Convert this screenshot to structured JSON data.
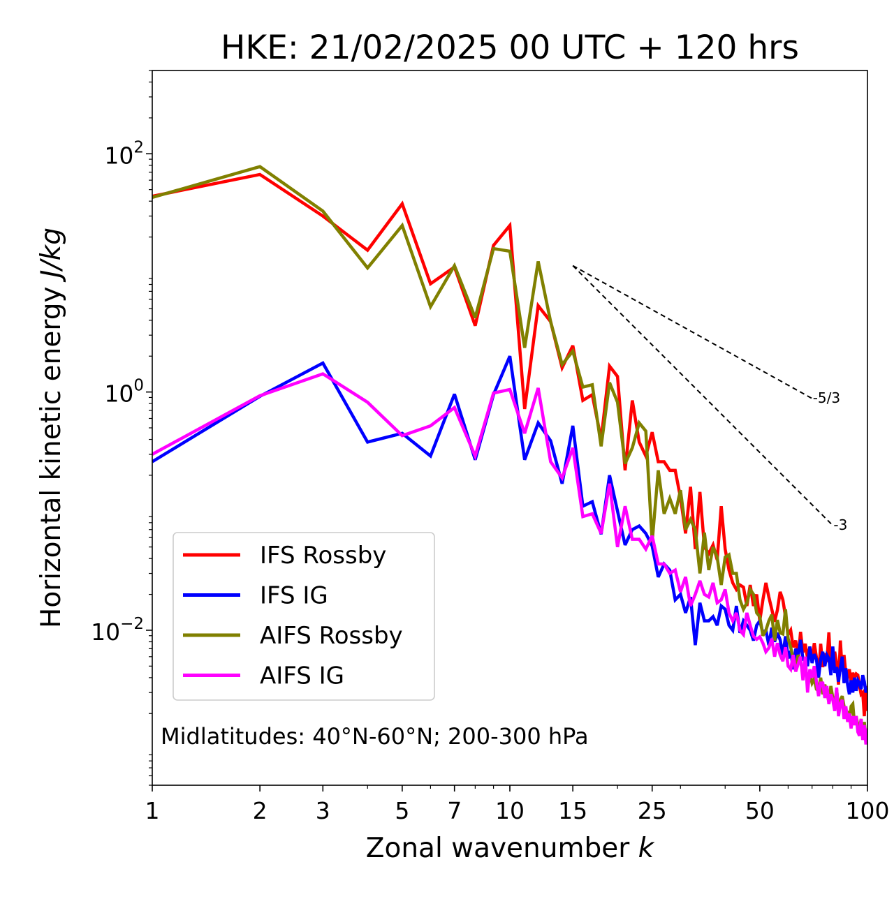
{
  "chart_data": {
    "type": "line",
    "title": "HKE: 21/02/2025 00 UTC + 120 hrs",
    "xlabel": "Zonal wavenumber k",
    "ylabel": "Horizontal kinetic energy J/kg",
    "xscale": "log",
    "yscale": "log",
    "xlim": [
      1,
      100
    ],
    "ylim": [
      0.0005,
      500
    ],
    "x_ticks": [
      1,
      2,
      3,
      5,
      7,
      10,
      15,
      25,
      50,
      100
    ],
    "x_tick_labels": [
      "1",
      "2",
      "3",
      "5",
      "7",
      "10",
      "15",
      "25",
      "50",
      "100"
    ],
    "y_ticks": [
      0.01,
      1,
      100
    ],
    "y_tick_labels": [
      "10−2",
      "10⁰",
      "10²"
    ],
    "y_tick_display": [
      {
        "base": "10",
        "exp": "−2"
      },
      {
        "base": "10",
        "exp": "0"
      },
      {
        "base": "10",
        "exp": "2"
      }
    ],
    "legend_position": "lower-left",
    "annotation": "Midlatitudes: 40°N-60°N; 200-300 hPa",
    "reference_slopes": [
      {
        "label": "-5/3",
        "slope": -1.6667,
        "x": [
          15,
          70
        ],
        "y_start": 11.5
      },
      {
        "label": "-3",
        "slope": -3,
        "x": [
          15,
          80
        ],
        "y_start": 11.5
      }
    ],
    "x": [
      1,
      2,
      3,
      4,
      5,
      6,
      7,
      8,
      9,
      10,
      11,
      12,
      13,
      14,
      15,
      16,
      17,
      18,
      19,
      20,
      21,
      22,
      23,
      24,
      25,
      26,
      27,
      28,
      29,
      30,
      31,
      32,
      33,
      34,
      35,
      36,
      37,
      38,
      39,
      40,
      41,
      42,
      43,
      44,
      45,
      46,
      47,
      48,
      49,
      50,
      51,
      52,
      53,
      54,
      55,
      56,
      57,
      58,
      59,
      60,
      61,
      62,
      63,
      64,
      65,
      66,
      67,
      68,
      69,
      70,
      71,
      72,
      73,
      74,
      75,
      76,
      77,
      78,
      79,
      80,
      81,
      82,
      83,
      84,
      85,
      86,
      87,
      88,
      89,
      90,
      91,
      92,
      93,
      94,
      95,
      96,
      97,
      98,
      99,
      100
    ],
    "series": [
      {
        "name": "IFS Rossby",
        "color": "#ff0000",
        "values": [
          44,
          67,
          30,
          15.5,
          38,
          8.1,
          11.2,
          3.6,
          17,
          25,
          0.72,
          5.3,
          3.9,
          1.6,
          2.45,
          0.85,
          0.95,
          0.4,
          1.65,
          1.35,
          0.22,
          0.85,
          0.38,
          0.29,
          0.46,
          0.26,
          0.26,
          0.22,
          0.22,
          0.13,
          0.065,
          0.16,
          0.048,
          0.145,
          0.05,
          0.044,
          0.052,
          0.039,
          0.11,
          0.048,
          0.032,
          0.025,
          0.022,
          0.024,
          0.023,
          0.016,
          0.024,
          0.016,
          0.02,
          0.012,
          0.018,
          0.025,
          0.019,
          0.015,
          0.0118,
          0.0148,
          0.021,
          0.018,
          0.013,
          0.0092,
          0.01,
          0.0072,
          0.0082,
          0.0058,
          0.0097,
          0.0065,
          0.0077,
          0.0058,
          0.0072,
          0.0056,
          0.0078,
          0.0059,
          0.0041,
          0.0077,
          0.0049,
          0.0064,
          0.0054,
          0.0096,
          0.0047,
          0.0048,
          0.0066,
          0.0053,
          0.0035,
          0.0082,
          0.0045,
          0.0062,
          0.0043,
          0.0041,
          0.0047,
          0.0036,
          0.0044,
          0.004,
          0.0043,
          0.0042,
          0.0034,
          0.0029,
          0.003,
          0.0019,
          0.0034,
          0.0021
        ]
      },
      {
        "name": "IFS IG",
        "color": "#0000ff",
        "values": [
          0.26,
          0.92,
          1.75,
          0.38,
          0.45,
          0.29,
          0.96,
          0.27,
          0.95,
          2.0,
          0.27,
          0.55,
          0.39,
          0.17,
          0.52,
          0.11,
          0.12,
          0.064,
          0.2,
          0.1,
          0.052,
          0.07,
          0.075,
          0.065,
          0.051,
          0.028,
          0.036,
          0.032,
          0.018,
          0.02,
          0.014,
          0.019,
          0.0075,
          0.017,
          0.012,
          0.012,
          0.013,
          0.011,
          0.016,
          0.015,
          0.011,
          0.01,
          0.016,
          0.0095,
          0.012,
          0.011,
          0.01,
          0.0082,
          0.011,
          0.012,
          0.0095,
          0.01,
          0.0075,
          0.0105,
          0.008,
          0.0095,
          0.0083,
          0.0062,
          0.0089,
          0.0058,
          0.0067,
          0.0047,
          0.007,
          0.0061,
          0.0083,
          0.0057,
          0.0057,
          0.005,
          0.0073,
          0.0053,
          0.0063,
          0.0057,
          0.004,
          0.0057,
          0.0066,
          0.005,
          0.0062,
          0.0058,
          0.0042,
          0.0073,
          0.0044,
          0.0049,
          0.0037,
          0.0049,
          0.006,
          0.0036,
          0.0048,
          0.0035,
          0.0029,
          0.0038,
          0.003,
          0.004,
          0.0031,
          0.0038,
          0.0036,
          0.0032,
          0.0042,
          0.0037,
          0.003,
          0.0033
        ]
      },
      {
        "name": "AIFS Rossby",
        "color": "#808000",
        "values": [
          43,
          78,
          33,
          11,
          25,
          5.2,
          11.5,
          4.2,
          16,
          15.2,
          2.35,
          12.5,
          3.9,
          1.7,
          2.2,
          1.1,
          1.15,
          0.35,
          1.2,
          0.82,
          0.25,
          0.34,
          0.55,
          0.47,
          0.055,
          0.22,
          0.095,
          0.128,
          0.095,
          0.15,
          0.07,
          0.085,
          0.07,
          0.03,
          0.066,
          0.032,
          0.05,
          0.041,
          0.024,
          0.041,
          0.043,
          0.03,
          0.03,
          0.018,
          0.015,
          0.017,
          0.022,
          0.02,
          0.014,
          0.013,
          0.009,
          0.01,
          0.012,
          0.0135,
          0.0082,
          0.0122,
          0.0095,
          0.0093,
          0.015,
          0.0085,
          0.0072,
          0.0058,
          0.0046,
          0.0062,
          0.0056,
          0.0042,
          0.005,
          0.0038,
          0.0043,
          0.0036,
          0.0039,
          0.0032,
          0.0031,
          0.004,
          0.0029,
          0.0035,
          0.003,
          0.0025,
          0.0034,
          0.0027,
          0.0024,
          0.0032,
          0.0022,
          0.0026,
          0.0028,
          0.0023,
          0.0019,
          0.0021,
          0.0017,
          0.0023,
          0.0024,
          0.0016,
          0.0019,
          0.0016,
          0.0015,
          0.0018,
          0.0013,
          0.0017,
          0.0012,
          0.0015
        ]
      },
      {
        "name": "AIFS IG",
        "color": "#ff00ff",
        "values": [
          0.3,
          0.93,
          1.42,
          0.82,
          0.43,
          0.52,
          0.74,
          0.29,
          0.98,
          1.05,
          0.45,
          1.08,
          0.26,
          0.19,
          0.34,
          0.09,
          0.095,
          0.065,
          0.17,
          0.05,
          0.11,
          0.058,
          0.058,
          0.048,
          0.062,
          0.036,
          0.036,
          0.03,
          0.032,
          0.021,
          0.028,
          0.016,
          0.02,
          0.026,
          0.02,
          0.019,
          0.025,
          0.017,
          0.018,
          0.022,
          0.014,
          0.012,
          0.014,
          0.01,
          0.0092,
          0.014,
          0.011,
          0.0089,
          0.0084,
          0.0088,
          0.0078,
          0.0066,
          0.0071,
          0.0085,
          0.006,
          0.0078,
          0.0062,
          0.0055,
          0.0072,
          0.005,
          0.0047,
          0.0062,
          0.0045,
          0.0052,
          0.006,
          0.0038,
          0.006,
          0.003,
          0.0047,
          0.004,
          0.005,
          0.0037,
          0.0028,
          0.0036,
          0.0036,
          0.0027,
          0.0034,
          0.0024,
          0.0029,
          0.0026,
          0.0021,
          0.0033,
          0.0019,
          0.0024,
          0.0026,
          0.0018,
          0.0023,
          0.0017,
          0.002,
          0.0015,
          0.0019,
          0.0016,
          0.0019,
          0.0014,
          0.0013,
          0.0018,
          0.0012,
          0.0016,
          0.0011,
          0.0015
        ]
      }
    ]
  }
}
